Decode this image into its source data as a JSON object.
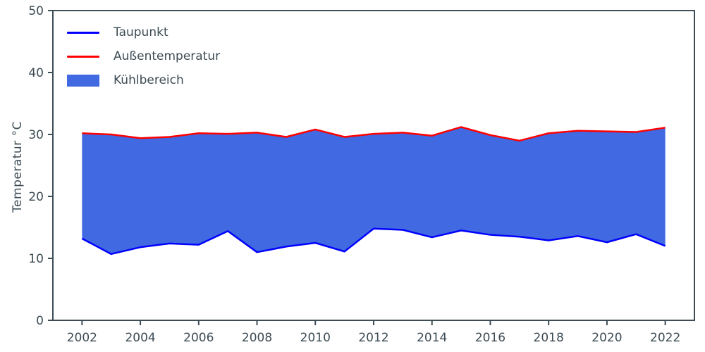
{
  "chart_data": {
    "type": "area",
    "x": [
      2002,
      2003,
      2004,
      2005,
      2006,
      2007,
      2008,
      2009,
      2010,
      2011,
      2012,
      2013,
      2014,
      2015,
      2016,
      2017,
      2018,
      2019,
      2020,
      2021,
      2022
    ],
    "series": [
      {
        "name": "Taupunkt",
        "color": "#0000ff",
        "values": [
          13.2,
          10.7,
          11.8,
          12.4,
          12.2,
          14.4,
          11.0,
          11.9,
          12.5,
          11.1,
          14.8,
          14.6,
          13.4,
          14.5,
          13.8,
          13.5,
          12.9,
          13.6,
          12.6,
          13.9,
          12.0
        ]
      },
      {
        "name": "Außentemperatur",
        "color": "#ff0000",
        "values": [
          30.2,
          30.0,
          29.4,
          29.6,
          30.2,
          30.1,
          30.3,
          29.6,
          30.8,
          29.6,
          30.1,
          30.3,
          29.8,
          31.2,
          29.9,
          29.0,
          30.2,
          30.6,
          30.5,
          30.4,
          31.1
        ]
      }
    ],
    "fill": {
      "name": "Kühlbereich",
      "color": "#4169e1",
      "between": [
        "Taupunkt",
        "Außentemperatur"
      ]
    },
    "title": "",
    "xlabel": "",
    "ylabel": "Temperatur °C",
    "xlim": [
      2001,
      2023
    ],
    "ylim": [
      0,
      50
    ],
    "xticks": [
      2002,
      2004,
      2006,
      2008,
      2010,
      2012,
      2014,
      2016,
      2018,
      2020,
      2022
    ],
    "yticks": [
      0,
      10,
      20,
      30,
      40,
      50
    ],
    "grid": false,
    "legend_position": "upper-left",
    "axis_color": "#3d4c55",
    "tick_font_size": 17,
    "line_width": 2.5
  }
}
